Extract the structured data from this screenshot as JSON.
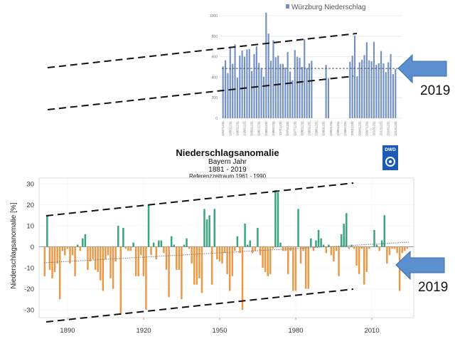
{
  "chart_data": [
    {
      "type": "bar",
      "legend": "Würzburg Niederschlag",
      "legend_position": "top",
      "color": "#7391c6",
      "ylim": [
        0,
        1000
      ],
      "yticks": [
        0,
        200,
        400,
        600,
        800,
        1000
      ],
      "xtick_labels": [
        "19471231",
        "19501231",
        "19531231",
        "19561231",
        "19591231",
        "19621231",
        "19651231",
        "19681231",
        "19711231",
        "19741231",
        "19771231",
        "19801231",
        "19831231",
        "19861231",
        "19891231",
        "19921231",
        "19951231",
        "19981231",
        "20011231",
        "20041231",
        "20071231",
        "20101231",
        "20131231",
        "20161231",
        "20191231"
      ],
      "x_start_year": 1947,
      "values": [
        505,
        565,
        440,
        690,
        530,
        720,
        395,
        610,
        660,
        600,
        670,
        675,
        460,
        625,
        700,
        540,
        490,
        405,
        1030,
        825,
        560,
        760,
        595,
        610,
        530,
        530,
        495,
        645,
        455,
        370,
        665,
        600,
        590,
        500,
        770,
        490,
        535,
        560,
        null,
        null,
        null,
        null,
        null,
        520,
        390,
        null,
        null,
        null,
        null,
        null,
        null,
        null,
        null,
        550,
        610,
        805,
        410,
        545,
        570,
        615,
        740,
        565,
        555,
        745,
        520,
        535,
        655,
        535,
        450,
        545,
        625,
        430,
        480
      ],
      "mean_line": 485,
      "annotation": "2019"
    },
    {
      "type": "bar",
      "title": "Niederschlagsanomalie",
      "subtitle": "Bayern Jahr",
      "period": "1881 - 2019",
      "reference": "Referenzzeitraum 1961 - 1990",
      "logo": "DWD",
      "ylabel": "Niederschlagsanomalie [%]",
      "ylim": [
        -35,
        32
      ],
      "yticks": [
        30,
        20,
        10,
        0,
        -10,
        -20,
        -30
      ],
      "xticks": [
        1890,
        1920,
        1950,
        1980,
        2010
      ],
      "x_start_year": 1881,
      "positive_color": "#3aa581",
      "negative_color": "#e89a48",
      "values": [
        -14,
        15,
        -11,
        -15,
        -12,
        -8,
        -25,
        -2,
        -4,
        -1,
        -8,
        -4,
        -14,
        1,
        -2,
        4,
        6,
        -11,
        -7,
        -6,
        -11,
        -12,
        -16,
        -21,
        -6,
        -4,
        -15,
        -20,
        -7,
        10,
        -32,
        9,
        -1,
        -2,
        -2,
        2,
        -14,
        -14,
        -4,
        -14,
        -30,
        20,
        -4,
        2,
        -6,
        3,
        3,
        -3,
        -11,
        -24,
        5,
        1,
        -11,
        -11,
        -25,
        1,
        4,
        -1,
        -8,
        -18,
        -18,
        -15,
        -22,
        18,
        13,
        15,
        -18,
        18,
        -6,
        -7,
        -8,
        -3,
        -13,
        -21,
        -14,
        -2,
        5,
        -3,
        -30,
        11,
        1,
        3,
        -3,
        -2,
        9,
        -4,
        -10,
        -12,
        -14,
        -13,
        -1,
        27,
        26,
        2,
        -2,
        -2,
        -13,
        -2,
        -21,
        -21,
        18,
        -8,
        -2,
        -20,
        -20,
        4,
        -2,
        3,
        8,
        4,
        1,
        -3,
        1,
        -4,
        -7,
        -2,
        -14,
        6,
        11,
        16,
        -1,
        1,
        -1,
        -9,
        -13,
        -1,
        -18,
        -12,
        -1,
        0,
        8,
        1,
        -2,
        3,
        15,
        -8,
        -4,
        -1,
        -1,
        -3,
        -21,
        -3,
        -2,
        -1
      ]
    }
  ],
  "annotations": {
    "top_arrow_label": "2019",
    "bottom_arrow_label": "2019"
  }
}
